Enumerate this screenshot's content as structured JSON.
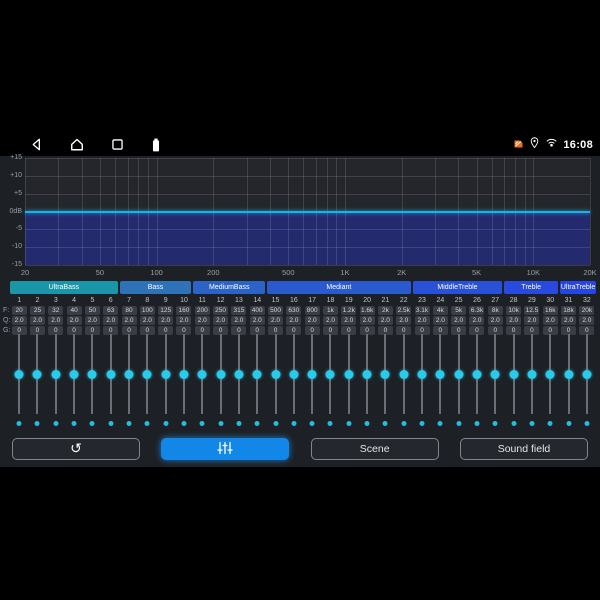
{
  "colors": {
    "accent_blue": "#1287e8",
    "cyan": "#2acbea",
    "navy_fill": "#232a6e",
    "zero_line": "#18b4e9"
  },
  "status_bar": {
    "time": "16:08",
    "nav_icons": [
      "back-icon",
      "home-icon",
      "recents-icon",
      "battery-icon"
    ],
    "right_icons": [
      "sim-alert-icon",
      "location-icon",
      "hotspot-icon"
    ]
  },
  "graph": {
    "curve_db": 0,
    "y_ticks": [
      {
        "label": "+15",
        "db": 15
      },
      {
        "label": "+10",
        "db": 10
      },
      {
        "label": "+5",
        "db": 5
      },
      {
        "label": "0dB",
        "db": 0
      },
      {
        "label": "-5",
        "db": -5
      },
      {
        "label": "-10",
        "db": -10
      },
      {
        "label": "-15",
        "db": -15
      }
    ],
    "x_ticks": [
      {
        "label": "20",
        "f": 20
      },
      {
        "label": "50",
        "f": 50
      },
      {
        "label": "100",
        "f": 100
      },
      {
        "label": "200",
        "f": 200
      },
      {
        "label": "500",
        "f": 500
      },
      {
        "label": "1K",
        "f": 1000
      },
      {
        "label": "2K",
        "f": 2000
      },
      {
        "label": "5K",
        "f": 5000
      },
      {
        "label": "10K",
        "f": 10000
      },
      {
        "label": "20K",
        "f": 20000
      }
    ],
    "grid_freqs": [
      20,
      30,
      40,
      50,
      60,
      70,
      80,
      90,
      100,
      200,
      300,
      400,
      500,
      600,
      700,
      800,
      900,
      1000,
      2000,
      3000,
      4000,
      5000,
      6000,
      7000,
      8000,
      9000,
      10000,
      20000
    ],
    "db_min": -15,
    "db_max": 15
  },
  "groups": [
    {
      "label": "UltraBass",
      "span": 6,
      "color": "#1b96a8"
    },
    {
      "label": "Bass",
      "span": 4,
      "color": "#2e72b8"
    },
    {
      "label": "MediumBass",
      "span": 4,
      "color": "#2b64c6"
    },
    {
      "label": "Mediant",
      "span": 8,
      "color": "#2a5ace"
    },
    {
      "label": "MiddleTreble",
      "span": 5,
      "color": "#2951d7"
    },
    {
      "label": "Treble",
      "span": 3,
      "color": "#284ade"
    },
    {
      "label": "UltraTreble",
      "span": 2,
      "color": "#2744e4"
    }
  ],
  "row_labels": {
    "f": "F:",
    "q": "Q:",
    "g": "G:"
  },
  "bands": [
    {
      "n": "1",
      "f": "20",
      "q": "2.0",
      "g": "0"
    },
    {
      "n": "2",
      "f": "25",
      "q": "2.0",
      "g": "0"
    },
    {
      "n": "3",
      "f": "32",
      "q": "2.0",
      "g": "0"
    },
    {
      "n": "4",
      "f": "40",
      "q": "2.0",
      "g": "0"
    },
    {
      "n": "5",
      "f": "50",
      "q": "2.0",
      "g": "0"
    },
    {
      "n": "6",
      "f": "63",
      "q": "2.0",
      "g": "0"
    },
    {
      "n": "7",
      "f": "80",
      "q": "2.0",
      "g": "0"
    },
    {
      "n": "8",
      "f": "100",
      "q": "2.0",
      "g": "0"
    },
    {
      "n": "9",
      "f": "125",
      "q": "2.0",
      "g": "0"
    },
    {
      "n": "10",
      "f": "160",
      "q": "2.0",
      "g": "0"
    },
    {
      "n": "11",
      "f": "200",
      "q": "2.0",
      "g": "0"
    },
    {
      "n": "12",
      "f": "250",
      "q": "2.0",
      "g": "0"
    },
    {
      "n": "13",
      "f": "315",
      "q": "2.0",
      "g": "0"
    },
    {
      "n": "14",
      "f": "400",
      "q": "2.0",
      "g": "0"
    },
    {
      "n": "15",
      "f": "500",
      "q": "2.0",
      "g": "0"
    },
    {
      "n": "16",
      "f": "630",
      "q": "2.0",
      "g": "0"
    },
    {
      "n": "17",
      "f": "800",
      "q": "2.0",
      "g": "0"
    },
    {
      "n": "18",
      "f": "1k",
      "q": "2.0",
      "g": "0"
    },
    {
      "n": "19",
      "f": "1.2k",
      "q": "2.0",
      "g": "0"
    },
    {
      "n": "20",
      "f": "1.6k",
      "q": "2.0",
      "g": "0"
    },
    {
      "n": "21",
      "f": "2k",
      "q": "2.0",
      "g": "0"
    },
    {
      "n": "22",
      "f": "2.5k",
      "q": "2.0",
      "g": "0"
    },
    {
      "n": "23",
      "f": "3.1k",
      "q": "2.0",
      "g": "0"
    },
    {
      "n": "24",
      "f": "4k",
      "q": "2.0",
      "g": "0"
    },
    {
      "n": "25",
      "f": "5k",
      "q": "2.0",
      "g": "0"
    },
    {
      "n": "26",
      "f": "6.3k",
      "q": "2.0",
      "g": "0"
    },
    {
      "n": "27",
      "f": "8k",
      "q": "2.0",
      "g": "0"
    },
    {
      "n": "28",
      "f": "10k",
      "q": "2.0",
      "g": "0"
    },
    {
      "n": "29",
      "f": "12.5",
      "q": "2.0",
      "g": "0"
    },
    {
      "n": "30",
      "f": "16k",
      "q": "2.0",
      "g": "0"
    },
    {
      "n": "31",
      "f": "18k",
      "q": "2.0",
      "g": "0"
    },
    {
      "n": "32",
      "f": "20k",
      "q": "2.0",
      "g": "0"
    }
  ],
  "buttons": [
    {
      "id": "reset",
      "icon": "reset-icon",
      "label": ""
    },
    {
      "id": "equalizer",
      "icon": "eq-sliders-icon",
      "label": "",
      "active": true
    },
    {
      "id": "scene",
      "label": "Scene"
    },
    {
      "id": "sound-field",
      "label": "Sound field"
    }
  ]
}
